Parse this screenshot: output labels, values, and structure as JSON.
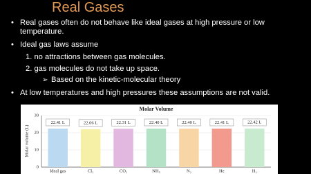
{
  "slide": {
    "title": "Real Gases",
    "bullets": [
      "Real gases often do not behave like ideal gases at high pressure or low temperature.",
      "Ideal gas laws assume",
      "At low temperatures and high pressures these assumptions are not valid."
    ],
    "sub_items": [
      "1. no attractions between gas molecules.",
      "2. gas molecules do not take up space."
    ],
    "sub_sub_item": "Based on the kinetic-molecular theory"
  },
  "chart_data": {
    "type": "bar",
    "title": "Molar Volume",
    "y_label": "Molar volume (L)",
    "categories": [
      "Ideal gas",
      "Cl₂",
      "CO₂",
      "NH₃",
      "N₂",
      "He",
      "H₂"
    ],
    "values": [
      22.41,
      22.06,
      22.31,
      22.4,
      22.4,
      22.41,
      22.42
    ],
    "value_labels": [
      "22.41 L",
      "22.06 L",
      "22.31 L",
      "22.40 L",
      "22.40 L",
      "22.41 L",
      "22.42 L"
    ],
    "colors": [
      "#bcd9f2",
      "#f6efa6",
      "#e2b8e0",
      "#b4e2c6",
      "#f7d5a4",
      "#f39a8e",
      "#c8ebcf"
    ],
    "ylim": [
      0,
      30
    ],
    "yticks": [
      0,
      10,
      20,
      30
    ],
    "grid": true
  }
}
